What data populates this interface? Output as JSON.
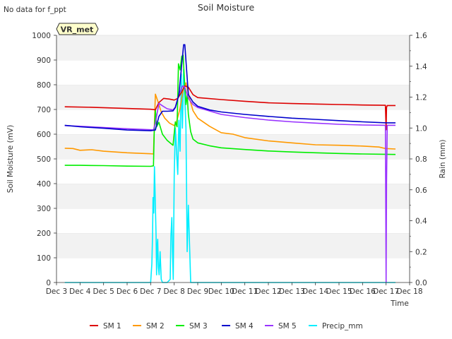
{
  "chart_data": {
    "type": "line",
    "title": "Soil Moisture",
    "note": "No data for f_ppt",
    "station_label": "VR_met",
    "xlabel": "Time",
    "ylabel": "Soil Moisture (mV)",
    "y2label": "Rain (mm)",
    "xlim": [
      3,
      18
    ],
    "ylim": [
      0,
      1000
    ],
    "y2lim": [
      0,
      1.6
    ],
    "x_ticks": [
      3,
      4,
      5,
      6,
      7,
      8,
      9,
      10,
      11,
      12,
      13,
      14,
      15,
      16,
      17,
      18
    ],
    "x_tick_labels": [
      "Dec 3",
      "Dec 4",
      "Dec 5",
      "Dec 6",
      "Dec 7",
      "Dec 8",
      "Dec 9",
      "Dec 10",
      "Dec 11",
      "Dec 12",
      "Dec 13",
      "Dec 14",
      "Dec 15",
      "Dec 16",
      "Dec 17",
      "Dec 18"
    ],
    "y_ticks": [
      0,
      100,
      200,
      300,
      400,
      500,
      600,
      700,
      800,
      900,
      1000
    ],
    "y2_ticks": [
      0.0,
      0.2,
      0.4,
      0.6,
      0.8,
      1.0,
      1.2,
      1.4,
      1.6
    ],
    "y2_tick_labels": [
      "0.0",
      "0.2",
      "0.4",
      "0.6",
      "0.8",
      "1.0",
      "1.2",
      "1.4",
      "1.6"
    ],
    "grid": "horizontal bands",
    "legend_position": "bottom",
    "series": [
      {
        "name": "SM 1",
        "color": "#dd0000",
        "axis": "left",
        "x": [
          3.35,
          4.5,
          6.0,
          7.0,
          7.2,
          7.35,
          7.55,
          7.8,
          8.0,
          8.15,
          8.3,
          8.45,
          8.6,
          8.8,
          9.0,
          10.0,
          11.0,
          12.0,
          13.0,
          14.0,
          15.0,
          16.0,
          16.97,
          17.0,
          17.02,
          17.05,
          17.4
        ],
        "values": [
          711,
          709,
          704,
          701,
          699,
          728,
          745,
          742,
          738,
          745,
          768,
          796,
          790,
          760,
          748,
          740,
          733,
          727,
          724,
          722,
          720,
          718,
          717,
          618,
          708,
          716,
          716
        ]
      },
      {
        "name": "SM 2",
        "color": "#ff9900",
        "axis": "left",
        "x": [
          3.35,
          3.7,
          4.0,
          4.5,
          5.0,
          6.0,
          7.0,
          7.12,
          7.2,
          7.3,
          7.45,
          7.6,
          7.8,
          8.0,
          8.1,
          8.25,
          8.4,
          8.5,
          8.65,
          8.8,
          9.0,
          9.5,
          10.0,
          10.5,
          11.0,
          12.0,
          13.0,
          14.0,
          15.0,
          16.0,
          16.7,
          16.97,
          17.4
        ],
        "values": [
          543,
          542,
          535,
          537,
          531,
          525,
          521,
          520,
          762,
          735,
          690,
          665,
          645,
          635,
          650,
          705,
          790,
          808,
          745,
          695,
          665,
          632,
          606,
          600,
          586,
          573,
          565,
          557,
          555,
          552,
          548,
          542,
          540
        ]
      },
      {
        "name": "SM 3",
        "color": "#00ee00",
        "axis": "left",
        "x": [
          3.35,
          4.0,
          5.0,
          6.0,
          7.0,
          7.12,
          7.15,
          7.2,
          7.25,
          7.35,
          7.5,
          7.7,
          7.95,
          8.05,
          8.12,
          8.18,
          8.25,
          8.32,
          8.38,
          8.45,
          8.5,
          8.55,
          8.6,
          8.7,
          8.8,
          9.0,
          9.5,
          10.0,
          11.0,
          12.0,
          13.0,
          14.0,
          15.0,
          16.0,
          17.4
        ],
        "values": [
          474,
          474,
          473,
          471,
          470,
          472,
          600,
          700,
          630,
          648,
          600,
          575,
          555,
          650,
          630,
          885,
          860,
          915,
          920,
          790,
          720,
          760,
          680,
          610,
          580,
          565,
          553,
          545,
          538,
          532,
          528,
          525,
          522,
          520,
          518
        ]
      },
      {
        "name": "SM 4",
        "color": "#0000cc",
        "axis": "left",
        "x": [
          3.35,
          4.0,
          5.0,
          6.0,
          7.0,
          7.2,
          7.35,
          7.5,
          7.7,
          7.95,
          8.05,
          8.2,
          8.4,
          8.45,
          8.6,
          8.8,
          9.0,
          9.5,
          10.0,
          11.0,
          12.0,
          13.0,
          14.0,
          15.0,
          16.0,
          17.0,
          17.4
        ],
        "values": [
          636,
          630,
          624,
          617,
          614,
          617,
          672,
          693,
          693,
          694,
          708,
          760,
          962,
          962,
          760,
          730,
          713,
          698,
          690,
          680,
          672,
          665,
          660,
          655,
          650,
          646,
          646
        ]
      },
      {
        "name": "SM 5",
        "color": "#9933ff",
        "axis": "left",
        "x": [
          3.35,
          4.0,
          5.0,
          6.0,
          7.0,
          7.12,
          7.2,
          7.35,
          7.5,
          7.7,
          7.95,
          8.05,
          8.2,
          8.35,
          8.45,
          8.6,
          8.8,
          9.0,
          9.5,
          10.0,
          11.0,
          12.0,
          13.0,
          14.0,
          15.0,
          16.0,
          16.97,
          17.0,
          17.02,
          17.05,
          17.4
        ],
        "values": [
          635,
          632,
          627,
          622,
          618,
          617,
          645,
          725,
          715,
          703,
          698,
          710,
          760,
          795,
          790,
          745,
          720,
          708,
          694,
          680,
          667,
          657,
          650,
          645,
          640,
          637,
          636,
          2,
          400,
          636,
          636
        ]
      },
      {
        "name": "Precip_mm",
        "color": "#00eeff",
        "axis": "right",
        "x": [
          3.35,
          7.0,
          7.05,
          7.08,
          7.1,
          7.13,
          7.16,
          7.2,
          7.23,
          7.25,
          7.28,
          7.3,
          7.33,
          7.36,
          7.4,
          7.45,
          7.5,
          7.7,
          7.83,
          7.86,
          7.9,
          7.93,
          7.96,
          8.0,
          8.05,
          8.1,
          8.15,
          8.2,
          8.25,
          8.3,
          8.35,
          8.4,
          8.45,
          8.5,
          8.55,
          8.6,
          8.7,
          17.4
        ],
        "values": [
          0,
          0,
          0.12,
          0.3,
          0.55,
          0.45,
          0.75,
          0.5,
          0.3,
          0.05,
          0.25,
          0.28,
          0.1,
          0.05,
          0.2,
          0.02,
          0,
          0,
          0.02,
          0.3,
          0.42,
          0.2,
          0.02,
          0.7,
          1.0,
          0.85,
          0.7,
          1.05,
          0.85,
          1.35,
          1.0,
          1.38,
          1.2,
          1.0,
          0.2,
          0.5,
          0,
          0
        ]
      }
    ]
  }
}
